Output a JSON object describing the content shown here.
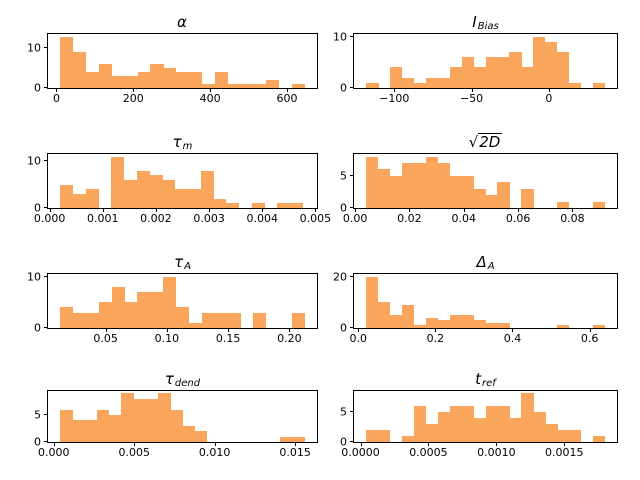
{
  "figure": {
    "background": "#ffffff",
    "bar_color": "#f9a55b",
    "spine_color": "#000000",
    "text_color": "#000000"
  },
  "chart_data": [
    {
      "type": "bar",
      "param": "alpha",
      "title_main": "α",
      "title_sub": "",
      "bin_start": 10,
      "bin_width": 33.5,
      "counts": [
        13,
        9,
        4,
        6,
        3,
        3,
        4,
        6,
        5,
        4,
        4,
        1,
        4,
        1,
        1,
        1,
        2,
        0,
        1
      ],
      "xlim": [
        -22,
        678
      ],
      "ymax": 13.65,
      "xticks": [
        {
          "v": 0,
          "label": "0"
        },
        {
          "v": 200,
          "label": "200"
        },
        {
          "v": 400,
          "label": "400"
        },
        {
          "v": 600,
          "label": "600"
        }
      ],
      "yticks": [
        {
          "v": 0,
          "label": "0"
        },
        {
          "v": 10,
          "label": "10"
        }
      ]
    },
    {
      "type": "bar",
      "param": "I_Bias",
      "title_main": "I",
      "title_sub": "Bias",
      "bin_start": -118,
      "bin_width": 7.7,
      "counts": [
        1,
        0,
        4,
        2,
        1,
        2,
        2,
        4,
        6,
        4,
        6,
        6,
        7,
        4,
        10,
        9,
        7,
        1,
        0,
        1
      ],
      "xlim": [
        -126,
        44
      ],
      "ymax": 10.5,
      "xticks": [
        {
          "v": -100,
          "label": "−100"
        },
        {
          "v": -50,
          "label": "−50"
        },
        {
          "v": 0,
          "label": "0"
        }
      ],
      "yticks": [
        {
          "v": 0,
          "label": "0"
        },
        {
          "v": 10,
          "label": "10"
        }
      ]
    },
    {
      "type": "bar",
      "param": "tau_m",
      "title_main": "τ",
      "title_sub": "m",
      "bin_start": 0.0002,
      "bin_width": 0.00024,
      "counts": [
        5,
        3,
        4,
        0,
        11,
        6,
        8,
        7,
        6,
        4,
        4,
        8,
        2,
        1,
        0,
        1,
        0,
        1,
        1
      ],
      "xlim": [
        -3e-05,
        0.00503
      ],
      "ymax": 11.55,
      "xticks": [
        {
          "v": 0,
          "label": "0.000"
        },
        {
          "v": 0.001,
          "label": "0.001"
        },
        {
          "v": 0.002,
          "label": "0.002"
        },
        {
          "v": 0.003,
          "label": "0.003"
        },
        {
          "v": 0.004,
          "label": "0.004"
        },
        {
          "v": 0.005,
          "label": "0.005"
        }
      ],
      "yticks": [
        {
          "v": 0,
          "label": "0"
        },
        {
          "v": 10,
          "label": "10"
        }
      ]
    },
    {
      "type": "bar",
      "param": "sqrt_2D",
      "title_prefix": "√",
      "title_main": "2D",
      "title_sub": "",
      "bin_start": 0.004,
      "bin_width": 0.0044,
      "counts": [
        8,
        6,
        5,
        7,
        7,
        8,
        7,
        5,
        5,
        3,
        2,
        4,
        0,
        3,
        0,
        0,
        1,
        0,
        0,
        1
      ],
      "xlim": [
        -0.0004,
        0.0964
      ],
      "ymax": 8.4,
      "xticks": [
        {
          "v": 0,
          "label": "0.00"
        },
        {
          "v": 0.02,
          "label": "0.02"
        },
        {
          "v": 0.04,
          "label": "0.04"
        },
        {
          "v": 0.06,
          "label": "0.06"
        },
        {
          "v": 0.08,
          "label": "0.08"
        }
      ],
      "yticks": [
        {
          "v": 0,
          "label": "0"
        },
        {
          "v": 5,
          "label": "5"
        }
      ]
    },
    {
      "type": "bar",
      "param": "tau_A",
      "title_main": "τ",
      "title_sub": "A",
      "bin_start": 0.013,
      "bin_width": 0.0105,
      "counts": [
        4,
        3,
        3,
        5,
        8,
        5,
        7,
        7,
        10,
        4,
        1,
        3,
        3,
        3,
        0,
        3,
        0,
        0,
        3
      ],
      "xlim": [
        0.003,
        0.2225
      ],
      "ymax": 10.5,
      "xticks": [
        {
          "v": 0.05,
          "label": "0.05"
        },
        {
          "v": 0.1,
          "label": "0.10"
        },
        {
          "v": 0.15,
          "label": "0.15"
        },
        {
          "v": 0.2,
          "label": "0.20"
        }
      ],
      "yticks": [
        {
          "v": 0,
          "label": "0"
        },
        {
          "v": 10,
          "label": "10"
        }
      ]
    },
    {
      "type": "bar",
      "param": "Delta_A",
      "title_main": "Δ",
      "title_sub": "A",
      "bin_start": 0.02,
      "bin_width": 0.031,
      "counts": [
        20,
        10,
        5,
        9,
        1,
        4,
        3,
        5,
        5,
        3,
        2,
        2,
        0,
        0,
        0,
        0,
        1,
        0,
        0,
        1
      ],
      "xlim": [
        -0.011,
        0.671
      ],
      "ymax": 21.0,
      "xticks": [
        {
          "v": 0.0,
          "label": "0.0"
        },
        {
          "v": 0.2,
          "label": "0.2"
        },
        {
          "v": 0.4,
          "label": "0.4"
        },
        {
          "v": 0.6,
          "label": "0.6"
        }
      ],
      "yticks": [
        {
          "v": 0,
          "label": "0"
        },
        {
          "v": 20,
          "label": "20"
        }
      ]
    },
    {
      "type": "bar",
      "param": "tau_dend",
      "title_main": "τ",
      "title_sub": "dend",
      "bin_start": 0.0004,
      "bin_width": 0.00076,
      "counts": [
        6,
        4,
        4,
        6,
        5,
        9,
        8,
        8,
        9,
        6,
        3,
        2,
        0,
        0,
        0,
        0,
        0,
        0,
        1,
        1
      ],
      "xlim": [
        -0.00036,
        0.01636
      ],
      "ymax": 9.45,
      "xticks": [
        {
          "v": 0.0,
          "label": "0.000"
        },
        {
          "v": 0.005,
          "label": "0.005"
        },
        {
          "v": 0.01,
          "label": "0.010"
        },
        {
          "v": 0.015,
          "label": "0.015"
        }
      ],
      "yticks": [
        {
          "v": 0,
          "label": "0"
        },
        {
          "v": 5,
          "label": "5"
        }
      ]
    },
    {
      "type": "bar",
      "param": "t_ref",
      "title_main": "t",
      "title_sub": "ref",
      "bin_start": 4e-05,
      "bin_width": 8.8e-05,
      "counts": [
        2,
        2,
        0,
        1,
        6,
        3,
        5,
        6,
        6,
        4,
        6,
        6,
        4,
        8,
        5,
        3,
        2,
        2,
        0,
        1
      ],
      "xlim": [
        -4.8e-05,
        0.001888
      ],
      "ymax": 8.4,
      "xticks": [
        {
          "v": 0.0,
          "label": "0.0000"
        },
        {
          "v": 0.0005,
          "label": "0.0005"
        },
        {
          "v": 0.001,
          "label": "0.0010"
        },
        {
          "v": 0.0015,
          "label": "0.0015"
        }
      ],
      "yticks": [
        {
          "v": 0,
          "label": "0"
        },
        {
          "v": 5,
          "label": "5"
        }
      ]
    }
  ]
}
